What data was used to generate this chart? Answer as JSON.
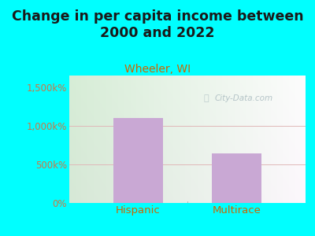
{
  "title": "Change in per capita income between\n2000 and 2022",
  "subtitle": "Wheeler, WI",
  "categories": [
    "Hispanic",
    "Multirace"
  ],
  "values": [
    1100,
    640
  ],
  "bar_color": "#C9A8D4",
  "background_color": "#00FFFF",
  "title_fontsize": 12.5,
  "title_color": "#1a1a1a",
  "subtitle_fontsize": 10,
  "subtitle_color": "#cc6600",
  "tick_label_color": "#cc7744",
  "xlabel_color": "#cc6600",
  "yticks": [
    0,
    500,
    1000,
    1500
  ],
  "ytick_labels": [
    "0%",
    "500k%",
    "1,000k%",
    "1,500k%"
  ],
  "ylim": [
    0,
    1650
  ],
  "watermark": "City-Data.com",
  "watermark_color": "#aabbc0",
  "plot_grad_left": "#d6edd6",
  "plot_grad_right": "#f0f0f0"
}
